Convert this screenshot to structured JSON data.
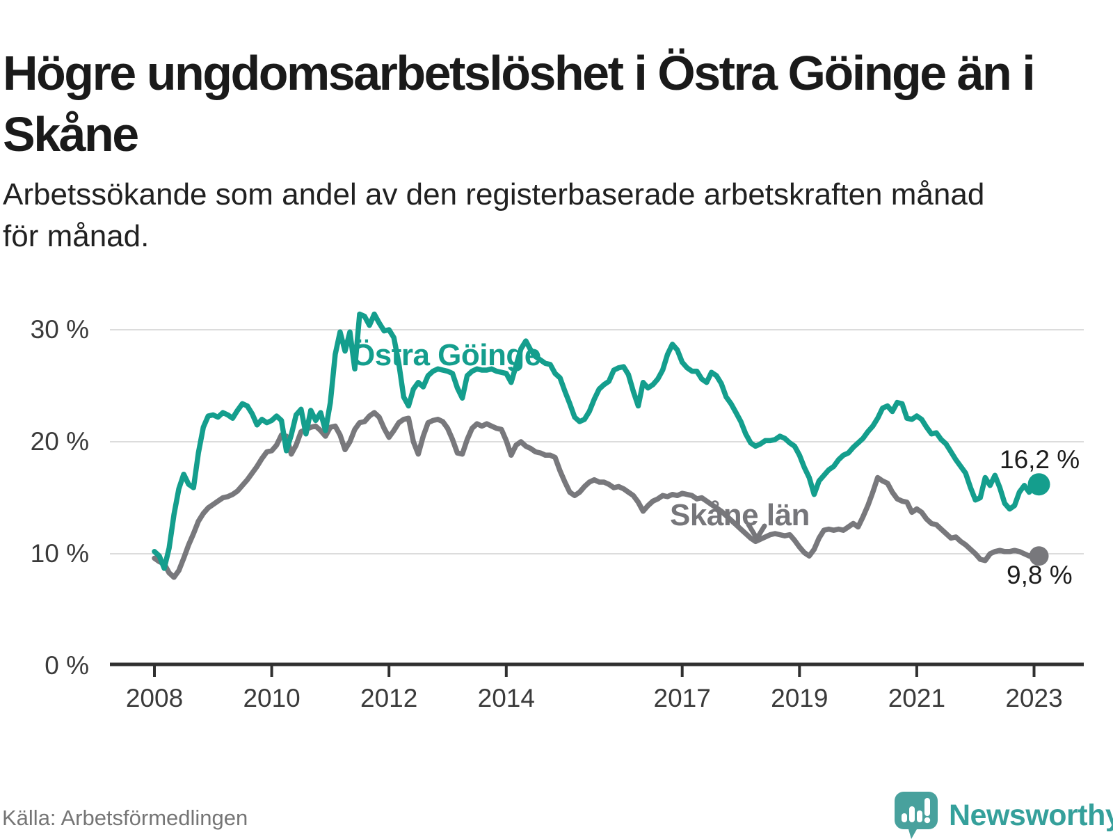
{
  "title_lines": [
    "Högre ungdomsarbetslöshet i Östra Göinge än i",
    "Skåne"
  ],
  "subtitle_lines": [
    "Arbetssökande som andel av den registerbaserade arbetskraften månad",
    "för månad."
  ],
  "source": "Källa: Arbetsförmedlingen",
  "brand": {
    "name": "Newsworthy",
    "icon": "speech-bubble-bar-chart-icon",
    "color": "#35a09b",
    "bubble_color": "#48a19d"
  },
  "colors": {
    "ostra_goinge": "#149e8d",
    "skane_lan": "#78787c",
    "grid": "#dcdcdc",
    "axis": "#303030",
    "tick_text": "#3a3a3a",
    "end_label_text": "#1c1c1c"
  },
  "chart_data": {
    "type": "line",
    "unit": "%",
    "x_start": "2008-01",
    "x_end": "2023-02",
    "x_frequency": "monthly",
    "ylim": [
      0,
      33
    ],
    "grid": "horizontal-only",
    "yticks": [
      {
        "value": 0,
        "label": "0 %"
      },
      {
        "value": 10,
        "label": "10 %"
      },
      {
        "value": 20,
        "label": "20 %"
      },
      {
        "value": 30,
        "label": "30 %"
      }
    ],
    "xticks": [
      {
        "year": 2008,
        "label": "2008"
      },
      {
        "year": 2010,
        "label": "2010"
      },
      {
        "year": 2012,
        "label": "2012"
      },
      {
        "year": 2014,
        "label": "2014"
      },
      {
        "year": 2017,
        "label": "2017"
      },
      {
        "year": 2019,
        "label": "2019"
      },
      {
        "year": 2021,
        "label": "2021"
      },
      {
        "year": 2023,
        "label": "2023"
      }
    ],
    "series": [
      {
        "name": "Östra Göinge",
        "color": "#149e8d",
        "end_label": "16,2 %",
        "end_value": 16.2,
        "values": [
          10.2,
          9.8,
          8.7,
          10.5,
          13.5,
          15.8,
          17.1,
          16.2,
          15.9,
          19.0,
          21.3,
          22.3,
          22.4,
          22.2,
          22.6,
          22.4,
          22.1,
          22.8,
          23.4,
          23.2,
          22.5,
          21.5,
          22.0,
          21.7,
          21.9,
          22.3,
          21.9,
          19.2,
          20.6,
          22.4,
          22.9,
          20.7,
          22.8,
          21.9,
          22.6,
          21.0,
          23.5,
          27.8,
          29.8,
          28.1,
          29.8,
          26.5,
          31.4,
          31.2,
          30.4,
          31.4,
          30.6,
          29.9,
          30.0,
          29.3,
          27.0,
          24.0,
          23.2,
          24.7,
          25.3,
          24.9,
          25.9,
          26.3,
          26.5,
          26.4,
          26.3,
          26.1,
          24.8,
          23.9,
          25.9,
          26.3,
          26.5,
          26.4,
          26.4,
          26.5,
          26.3,
          26.2,
          26.1,
          25.3,
          26.8,
          28.3,
          29.0,
          28.2,
          27.6,
          27.3,
          27.0,
          26.9,
          26.1,
          25.7,
          24.5,
          23.4,
          22.2,
          21.8,
          22.0,
          22.7,
          23.8,
          24.7,
          25.1,
          25.4,
          26.4,
          26.6,
          26.7,
          26.0,
          24.5,
          23.2,
          25.3,
          24.8,
          25.1,
          25.6,
          26.4,
          27.8,
          28.7,
          28.2,
          27.1,
          26.6,
          26.3,
          26.3,
          25.6,
          25.3,
          26.2,
          25.9,
          25.2,
          24.0,
          23.4,
          22.6,
          21.8,
          20.7,
          19.9,
          19.6,
          19.8,
          20.1,
          20.1,
          20.2,
          20.5,
          20.3,
          19.9,
          19.6,
          18.8,
          17.7,
          16.8,
          15.3,
          16.5,
          17.0,
          17.5,
          17.8,
          18.4,
          18.8,
          19.0,
          19.5,
          19.9,
          20.3,
          20.9,
          21.4,
          22.1,
          23.0,
          23.2,
          22.7,
          23.5,
          23.4,
          22.1,
          22.0,
          22.3,
          22.0,
          21.3,
          20.7,
          20.8,
          20.2,
          19.8,
          19.1,
          18.4,
          17.8,
          17.2,
          15.9,
          14.8,
          15.0,
          16.8,
          16.1,
          17.0,
          15.9,
          14.5,
          14.0,
          14.3,
          15.5,
          16.1,
          15.5,
          16.0,
          16.2
        ]
      },
      {
        "name": "Skåne län",
        "color": "#78787c",
        "end_label": "9,8 %",
        "end_value": 9.8,
        "values": [
          9.6,
          9.3,
          9.1,
          8.3,
          7.9,
          8.5,
          9.6,
          10.8,
          11.8,
          12.9,
          13.6,
          14.1,
          14.4,
          14.7,
          15.0,
          15.1,
          15.3,
          15.6,
          16.1,
          16.6,
          17.2,
          17.8,
          18.5,
          19.1,
          19.2,
          19.7,
          20.6,
          20.5,
          18.9,
          19.7,
          20.9,
          21.1,
          21.3,
          21.4,
          21.0,
          20.5,
          21.3,
          21.4,
          20.6,
          19.3,
          20.0,
          21.1,
          21.7,
          21.8,
          22.3,
          22.6,
          22.2,
          21.2,
          20.4,
          21.0,
          21.7,
          22.0,
          22.1,
          20.0,
          18.9,
          20.5,
          21.7,
          21.9,
          22.0,
          21.8,
          21.2,
          20.2,
          19.0,
          18.9,
          20.2,
          21.2,
          21.6,
          21.4,
          21.6,
          21.4,
          21.2,
          21.1,
          20.1,
          18.8,
          19.7,
          20.0,
          19.6,
          19.4,
          19.1,
          19.0,
          18.8,
          18.8,
          18.6,
          17.4,
          16.4,
          15.5,
          15.2,
          15.5,
          16.0,
          16.4,
          16.6,
          16.4,
          16.4,
          16.2,
          15.9,
          16.0,
          15.8,
          15.5,
          15.2,
          14.6,
          13.8,
          14.3,
          14.7,
          14.9,
          15.2,
          15.1,
          15.3,
          15.2,
          15.4,
          15.3,
          15.2,
          14.9,
          15.0,
          14.7,
          14.4,
          14.1,
          13.8,
          13.4,
          13.0,
          12.6,
          12.2,
          11.8,
          11.4,
          11.1,
          11.3,
          11.5,
          11.7,
          11.8,
          11.7,
          11.6,
          11.7,
          11.2,
          10.6,
          10.1,
          9.8,
          10.4,
          11.4,
          12.1,
          12.2,
          12.1,
          12.2,
          12.1,
          12.4,
          12.7,
          12.4,
          13.3,
          14.3,
          15.5,
          16.8,
          16.5,
          16.3,
          15.5,
          14.9,
          14.7,
          14.6,
          13.7,
          14.0,
          13.7,
          13.1,
          12.7,
          12.6,
          12.2,
          11.8,
          11.4,
          11.5,
          11.1,
          10.8,
          10.4,
          10.0,
          9.5,
          9.4,
          10.0,
          10.2,
          10.3,
          10.2,
          10.2,
          10.3,
          10.2,
          10.0,
          9.8,
          9.9,
          9.8
        ]
      }
    ]
  }
}
